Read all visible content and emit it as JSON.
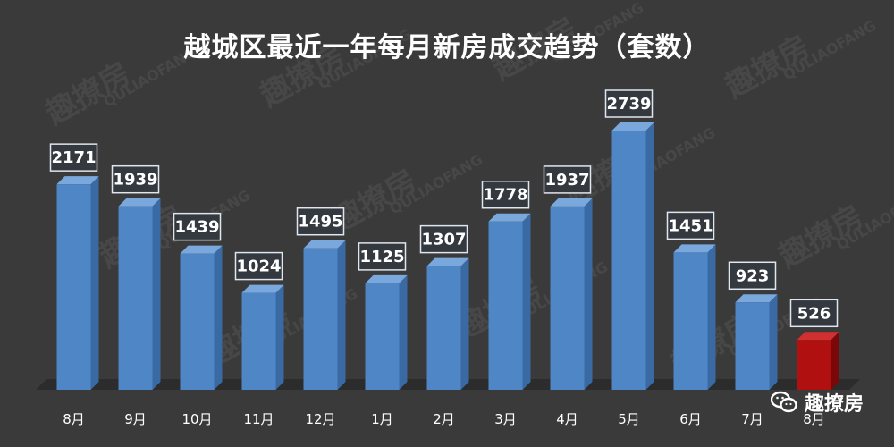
{
  "title": "越城区最近一年每月新房成交趋势（套数）",
  "brand": {
    "text": "趣撩房",
    "icon": "wechat-icon"
  },
  "watermark": {
    "cn": "趣撩房",
    "en": "QULIAOFANG"
  },
  "colors": {
    "background": "#3a3a3a",
    "bar": "#4f86c6",
    "bar_highlight": "#b01010",
    "label_bg": "#34393f",
    "label_text": "#ffffff",
    "axis_text": "#ffffff"
  },
  "chart_data": {
    "type": "bar",
    "title": "越城区最近一年每月新房成交趋势（套数）",
    "categories": [
      "8月",
      "9月",
      "10月",
      "11月",
      "12月",
      "1月",
      "2月",
      "3月",
      "4月",
      "5月",
      "6月",
      "7月",
      "8月"
    ],
    "values": [
      2171,
      1939,
      1439,
      1024,
      1495,
      1125,
      1307,
      1778,
      1937,
      2739,
      1451,
      923,
      526
    ],
    "highlight_index": 12,
    "ylim": [
      0,
      3000
    ],
    "grid": false,
    "legend": "none",
    "xlabel": "",
    "ylabel": ""
  }
}
